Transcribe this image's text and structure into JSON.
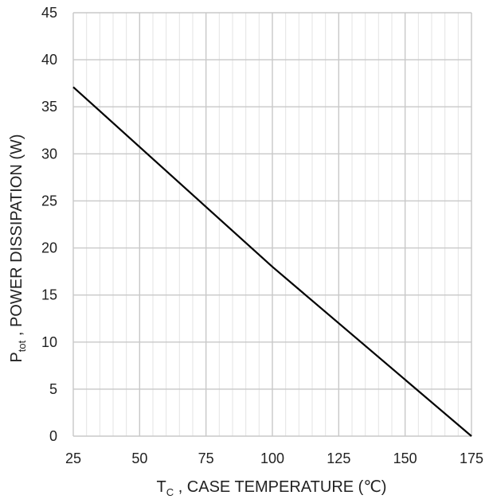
{
  "chart_data": {
    "type": "line",
    "title": "",
    "xlabel": {
      "main": "T",
      "subscript": "C",
      "rest": " , CASE TEMPERATURE (℃)"
    },
    "ylabel": {
      "main": "P",
      "subscript": "tot",
      "rest": " , POWER DISSIPATION (W)"
    },
    "xlim": [
      25,
      175
    ],
    "ylim": [
      0,
      45
    ],
    "x_ticks": [
      25,
      50,
      75,
      100,
      125,
      150,
      175
    ],
    "y_ticks": [
      0,
      5,
      10,
      15,
      20,
      25,
      30,
      35,
      40,
      45
    ],
    "x_minor_step": 5,
    "y_minor_step": 5,
    "grid": true,
    "series": [
      {
        "x": [
          25,
          100,
          175
        ],
        "y": [
          37.1,
          18.0,
          0
        ],
        "color": "#000000"
      }
    ]
  }
}
